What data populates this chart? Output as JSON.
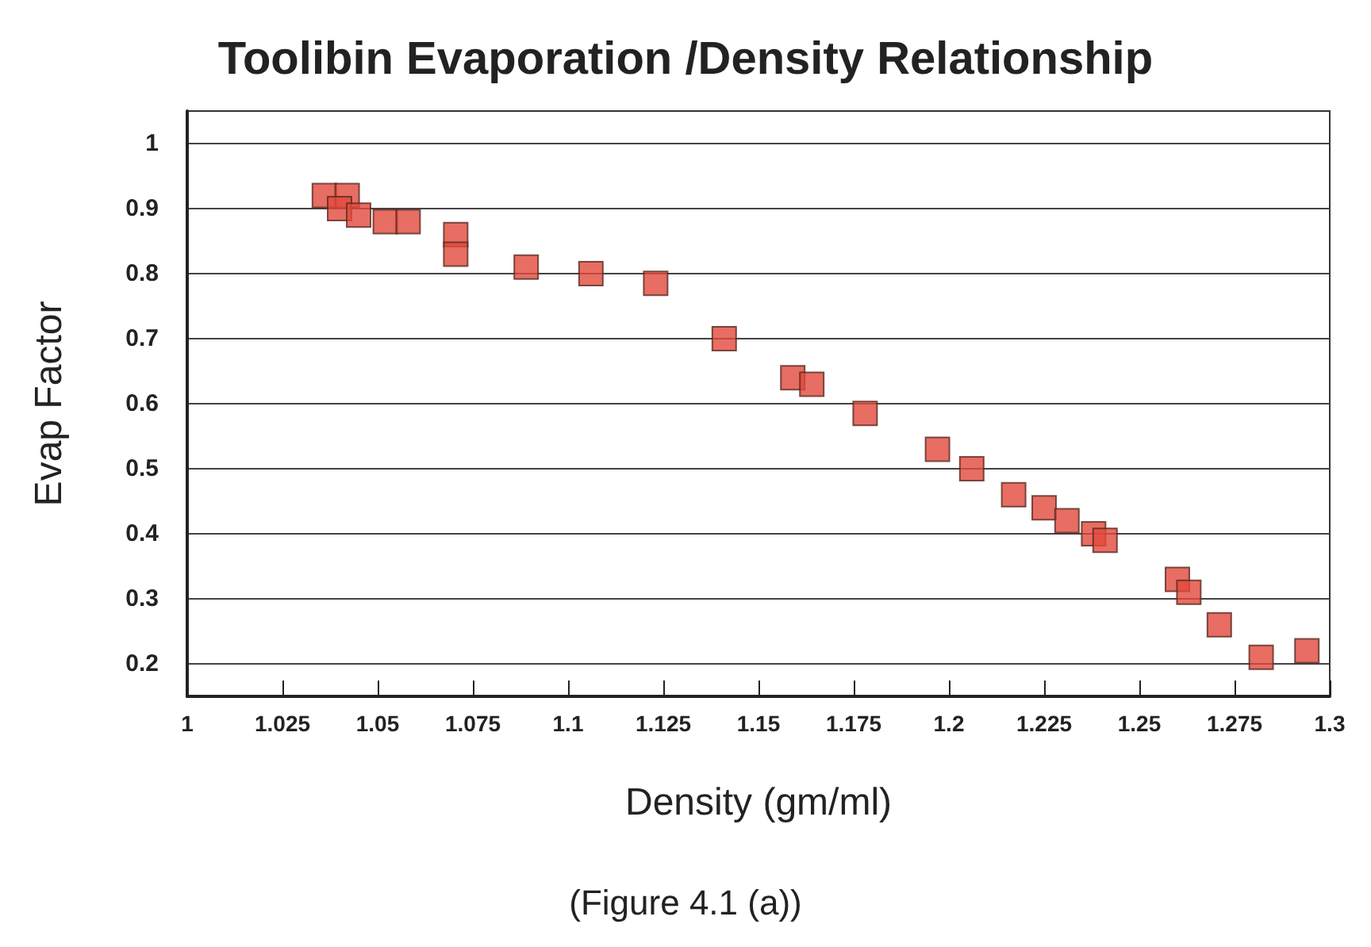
{
  "chart_data": {
    "type": "scatter",
    "title": "Toolibin Evaporation /Density Relationship",
    "xlabel": "Density (gm/ml)",
    "ylabel": "Evap Factor",
    "annotations": [
      "(Figure 4.1 (a))"
    ],
    "x": [
      1.036,
      1.042,
      1.04,
      1.045,
      1.052,
      1.058,
      1.0705,
      1.0705,
      1.089,
      1.106,
      1.123,
      1.141,
      1.159,
      1.164,
      1.178,
      1.197,
      1.206,
      1.217,
      1.225,
      1.231,
      1.238,
      1.241,
      1.26,
      1.263,
      1.271,
      1.282,
      1.294
    ],
    "values": [
      0.92,
      0.92,
      0.9,
      0.89,
      0.88,
      0.88,
      0.86,
      0.83,
      0.81,
      0.8,
      0.785,
      0.7,
      0.64,
      0.63,
      0.585,
      0.53,
      0.5,
      0.46,
      0.44,
      0.42,
      0.4,
      0.39,
      0.33,
      0.31,
      0.26,
      0.21,
      0.22
    ],
    "color": "#e2483c",
    "marker": "square",
    "xlim": [
      1,
      1.3
    ],
    "xticks": [
      1,
      1.025,
      1.05,
      1.075,
      1.1,
      1.125,
      1.15,
      1.175,
      1.2,
      1.225,
      1.25,
      1.275,
      1.3
    ],
    "ylim": [
      0.15,
      1.05
    ],
    "yticks": [
      0.2,
      0.3,
      0.4,
      0.5,
      0.6,
      0.7,
      0.8,
      0.9,
      1
    ],
    "grid": "y"
  }
}
